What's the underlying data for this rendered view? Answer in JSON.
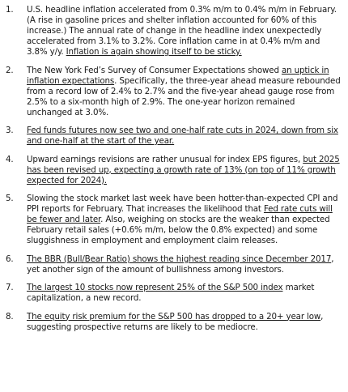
{
  "items": [
    {
      "number": "1.",
      "segments": [
        {
          "text": "U.S. headline inflation accelerated from 0.3% m/m to 0.4% m/m in February. (A rise in gasoline prices and shelter inflation accounted for 60% of this increase.) The annual rate of change in the headline index unexpectedly accelerated from 3.1% to 3.2%. Core inflation came in at 0.4% m/m and 3.8% y/y. ",
          "link": false
        },
        {
          "text": "Inflation is again showing itself to be sticky.",
          "link": true
        }
      ]
    },
    {
      "number": "2.",
      "segments": [
        {
          "text": "The New York Fed’s Survey of Consumer Expectations showed ",
          "link": false
        },
        {
          "text": "an uptick in inflation expectations",
          "link": true
        },
        {
          "text": ". Specifically, the three-year ahead measure rebounded from a record low of 2.4% to 2.7% and the five-year ahead gauge rose from 2.5% to a six-month high of 2.9%. The one-year horizon remained unchanged at 3.0%.",
          "link": false
        }
      ]
    },
    {
      "number": "3.",
      "segments": [
        {
          "text": "Fed funds futures now see two and one-half rate cuts in 2024, down from six and one-half at the start of the year.",
          "link": true
        }
      ]
    },
    {
      "number": "4.",
      "segments": [
        {
          "text": "Upward earnings revisions are rather unusual for index EPS figures, ",
          "link": false
        },
        {
          "text": "but 2025 has been revised up, expecting a growth rate of 13% (on top of 11% growth expected for 2024).",
          "link": true
        }
      ]
    },
    {
      "number": "5.",
      "segments": [
        {
          "text": "Slowing the stock market last week have been hotter-than-expected CPI and PPI reports for February. That increases the likelihood that ",
          "link": false
        },
        {
          "text": "Fed rate cuts will be fewer and later",
          "link": true
        },
        {
          "text": ". Also, weighing on stocks are the weaker than expected February retail sales (+0.6% m/m, below the 0.8% expected) and some sluggishness in employment and employment claim releases.",
          "link": false
        }
      ]
    },
    {
      "number": "6.",
      "segments": [
        {
          "text": "The BBR (Bull/Bear Ratio) shows the highest reading since December 2017",
          "link": true
        },
        {
          "text": ", yet another sign of the amount of bullishness among investors.",
          "link": false
        }
      ]
    },
    {
      "number": "7.",
      "segments": [
        {
          "text": "The largest 10 stocks now represent 25% of the S&P 500 index",
          "link": true
        },
        {
          "text": " market capitalization, a new record.",
          "link": false
        }
      ]
    },
    {
      "number": "8.",
      "segments": [
        {
          "text": "The equity risk premium for the S&P 500 has dropped to a 20+ year low",
          "link": true
        },
        {
          "text": ", suggesting prospective returns are likely to be mediocre.",
          "link": false
        }
      ]
    }
  ]
}
